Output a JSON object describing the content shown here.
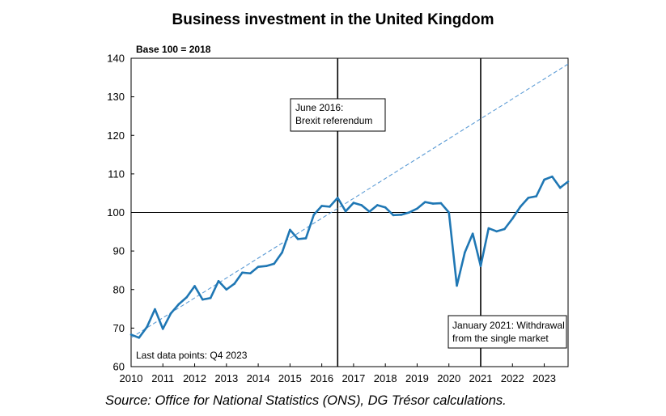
{
  "title": "Business investment in the United Kingdom",
  "source": "Source: Office for National Statistics (ONS), DG Trésor calculations.",
  "chart_data": {
    "type": "line",
    "base_label": "Base 100 = 2018",
    "ylim": [
      60,
      140
    ],
    "yticks": [
      60,
      70,
      80,
      90,
      100,
      110,
      120,
      130,
      140
    ],
    "xlim": [
      2010,
      2023.75
    ],
    "xticks": [
      "2010",
      "2011",
      "2012",
      "2013",
      "2014",
      "2015",
      "2016",
      "2017",
      "2018",
      "2019",
      "2020",
      "2021",
      "2022",
      "2023"
    ],
    "grid": false,
    "reference_line_y": 100,
    "colors": {
      "series": "#1f77b4",
      "trend": "#5b9bd5"
    },
    "series": [
      {
        "x": [
          2010.0,
          2010.25,
          2010.5,
          2010.75,
          2011.0,
          2011.25,
          2011.5,
          2011.75,
          2012.0,
          2012.25,
          2012.5,
          2012.75,
          2013.0,
          2013.25,
          2013.5,
          2013.75,
          2014.0,
          2014.25,
          2014.5,
          2014.75,
          2015.0,
          2015.25,
          2015.5,
          2015.75,
          2016.0,
          2016.25,
          2016.5,
          2016.75,
          2017.0,
          2017.25,
          2017.5,
          2017.75,
          2018.0,
          2018.25,
          2018.5,
          2018.75,
          2019.0,
          2019.25,
          2019.5,
          2019.75,
          2020.0,
          2020.25,
          2020.5,
          2020.75,
          2021.0,
          2021.25,
          2021.5,
          2021.75,
          2022.0,
          2022.25,
          2022.5,
          2022.75,
          2023.0,
          2023.25,
          2023.5,
          2023.75
        ],
        "values": [
          68.3,
          67.5,
          70.3,
          74.9,
          69.8,
          73.8,
          76.2,
          78.0,
          80.9,
          77.4,
          77.8,
          82.2,
          80.0,
          81.5,
          84.4,
          84.2,
          85.9,
          86.1,
          86.7,
          89.6,
          95.5,
          93.1,
          93.3,
          99.4,
          101.7,
          101.5,
          103.8,
          100.3,
          102.5,
          101.9,
          100.2,
          101.9,
          101.3,
          99.3,
          99.4,
          100.0,
          101.0,
          102.7,
          102.3,
          102.4,
          100.0,
          81.0,
          89.6,
          94.5,
          86.1,
          95.9,
          95.1,
          95.7,
          98.4,
          101.5,
          103.8,
          104.2,
          108.5,
          109.3,
          106.4,
          108.0
        ]
      }
    ],
    "trend": {
      "x": [
        2010.0,
        2023.75
      ],
      "values": [
        67.5,
        138.5
      ]
    },
    "events": [
      {
        "x": 2016.5,
        "label_lines": [
          "June 2016:",
          "Brexit referendum"
        ]
      },
      {
        "x": 2021.0,
        "label_lines": [
          "January 2021: Withdrawal",
          "from the single market"
        ]
      }
    ],
    "annotation": "Last data points: Q4 2023"
  }
}
